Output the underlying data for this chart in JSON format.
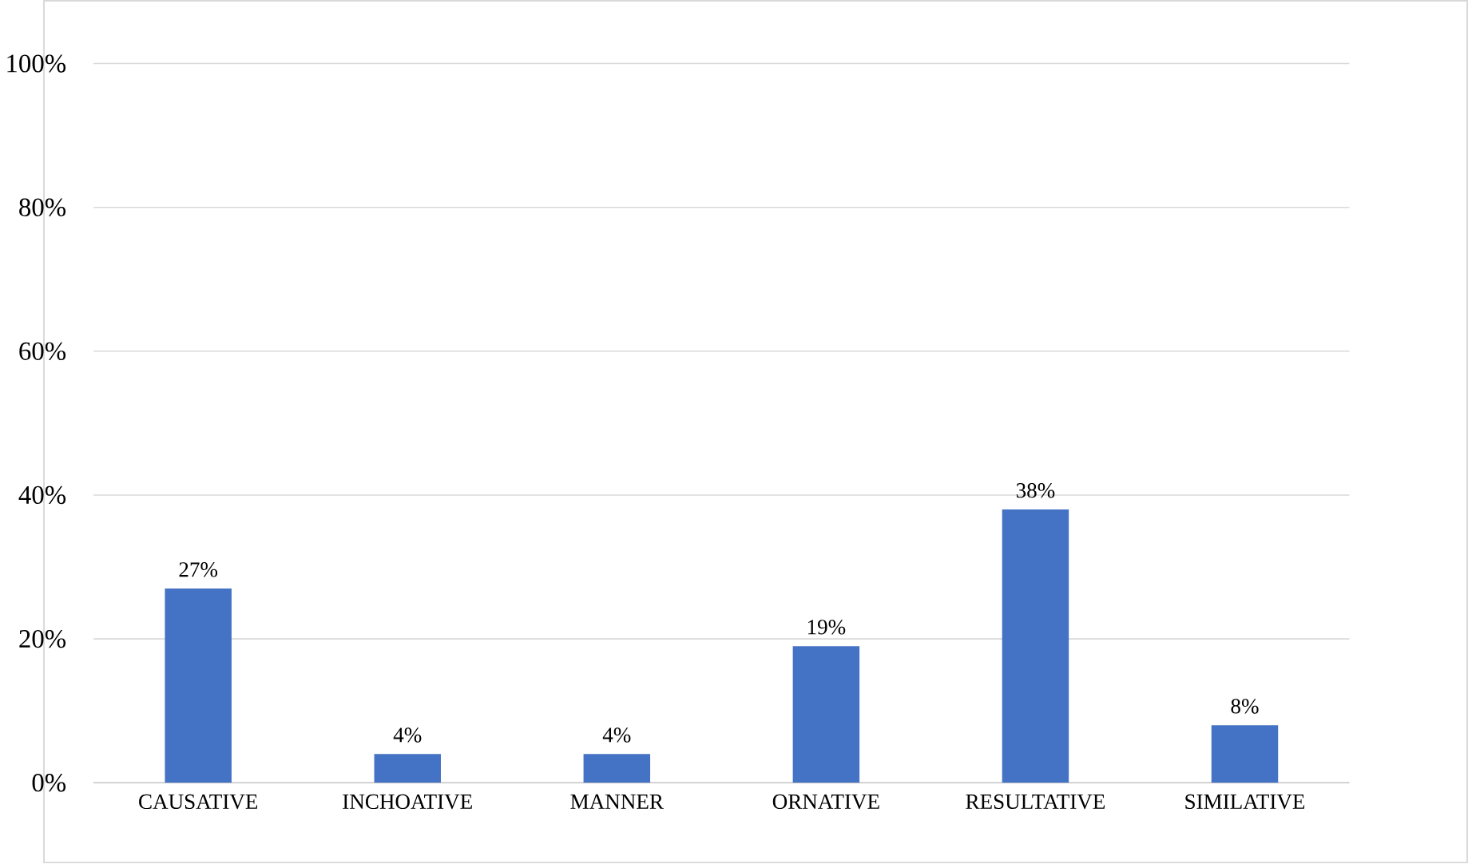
{
  "chart_data": {
    "type": "bar",
    "categories": [
      "CAUSATIVE",
      "INCHOATIVE",
      "MANNER",
      "ORNATIVE",
      "RESULTATIVE",
      "SIMILATIVE"
    ],
    "values": [
      27,
      4,
      4,
      19,
      38,
      8
    ],
    "value_labels": [
      "27%",
      "4%",
      "4%",
      "19%",
      "38%",
      "8%"
    ],
    "color": "#4472c4",
    "ylim": [
      0,
      100
    ],
    "yticks": [
      {
        "value": 0,
        "label": "0%"
      },
      {
        "value": 20,
        "label": "20%"
      },
      {
        "value": 40,
        "label": "40%"
      },
      {
        "value": 60,
        "label": "60%"
      },
      {
        "value": 80,
        "label": "80%"
      },
      {
        "value": 100,
        "label": "100%"
      }
    ],
    "grid": "y"
  }
}
